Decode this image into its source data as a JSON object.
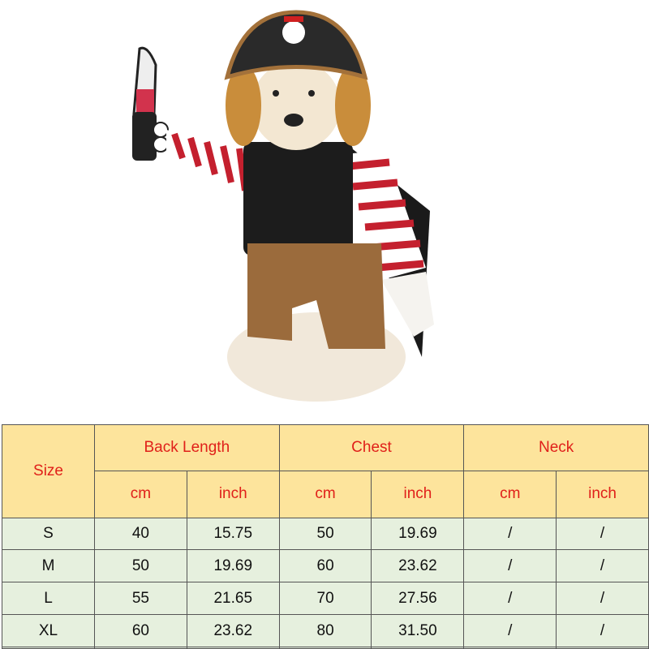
{
  "table": {
    "size_label": "Size",
    "groups": [
      "Back Length",
      "Chest",
      "Neck"
    ],
    "units": [
      "cm",
      "inch",
      "cm",
      "inch",
      "cm",
      "inch"
    ],
    "rows": [
      [
        "S",
        "40",
        "15.75",
        "50",
        "19.69",
        "/",
        "/"
      ],
      [
        "M",
        "50",
        "19.69",
        "60",
        "23.62",
        "/",
        "/"
      ],
      [
        "L",
        "55",
        "21.65",
        "70",
        "27.56",
        "/",
        "/"
      ],
      [
        "XL",
        "60",
        "23.62",
        "80",
        "31.50",
        "/",
        "/"
      ],
      [
        "",
        "",
        "",
        "",
        "",
        "",
        ""
      ]
    ]
  },
  "colors": {
    "header_bg": "#fde49c",
    "header_text": "#e0201a",
    "body_bg": "#e6f0de"
  }
}
